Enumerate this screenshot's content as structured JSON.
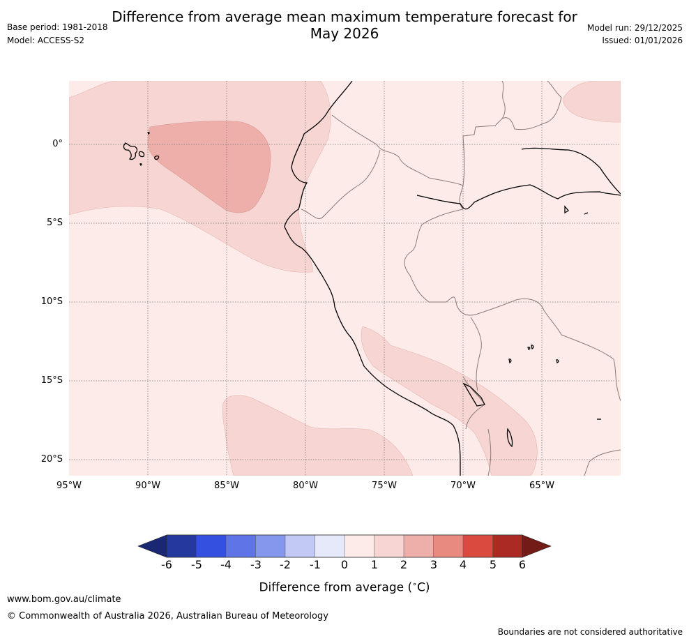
{
  "header": {
    "title": "Difference from average mean maximum temperature forecast for\nMay 2026",
    "base_period": "Base period: 1981-2018",
    "model": "Model: ACCESS-S2",
    "model_run": "Model run: 29/12/2025",
    "issued": "Issued: 01/01/2026"
  },
  "map": {
    "latitude_labels": [
      "0°",
      "5°S",
      "10°S",
      "15°S",
      "20°S"
    ],
    "longitude_labels": [
      "95°W",
      "90°W",
      "85°W",
      "80°W",
      "75°W",
      "70°W",
      "65°W"
    ],
    "regions": [
      {
        "name": "Pacific Ocean west of Ecuador and Galapagos",
        "anomaly_range": "1 to 2"
      },
      {
        "name": "Ocean west of Ecuador (core)",
        "anomaly_range": "2 to 3"
      },
      {
        "name": "Southern Peru and western Bolivia",
        "anomaly_range": "1 to 2"
      },
      {
        "name": "Pacific Ocean west of Chile",
        "anomaly_range": "1 to 2"
      },
      {
        "name": "Northern Brazil / Guiana region",
        "anomaly_range": "1 to 2"
      },
      {
        "name": "Remaining land and ocean",
        "anomaly_range": "0 to 1"
      }
    ]
  },
  "colorbar": {
    "ticks": [
      "-6",
      "-5",
      "-4",
      "-3",
      "-2",
      "-1",
      "0",
      "1",
      "2",
      "3",
      "4",
      "5",
      "6"
    ],
    "colors": [
      "#25389e",
      "#3450e0",
      "#5f74e6",
      "#8597ec",
      "#c2c9f5",
      "#e6e9fa",
      "#fcebe9",
      "#f6d5d2",
      "#eeafaa",
      "#e88a80",
      "#db4a3e",
      "#ab2a23"
    ],
    "under_color": "#1a2772",
    "over_color": "#731b16",
    "title": "Difference from average (°C)",
    "title_prefix": "Difference from average (",
    "title_unit": "C)"
  },
  "footer": {
    "website": "www.bom.gov.au/climate",
    "copyright": "© Commonwealth of Australia 2026, Australian Bureau of Meteorology",
    "disclaimer": "Boundaries are not considered authoritative"
  }
}
